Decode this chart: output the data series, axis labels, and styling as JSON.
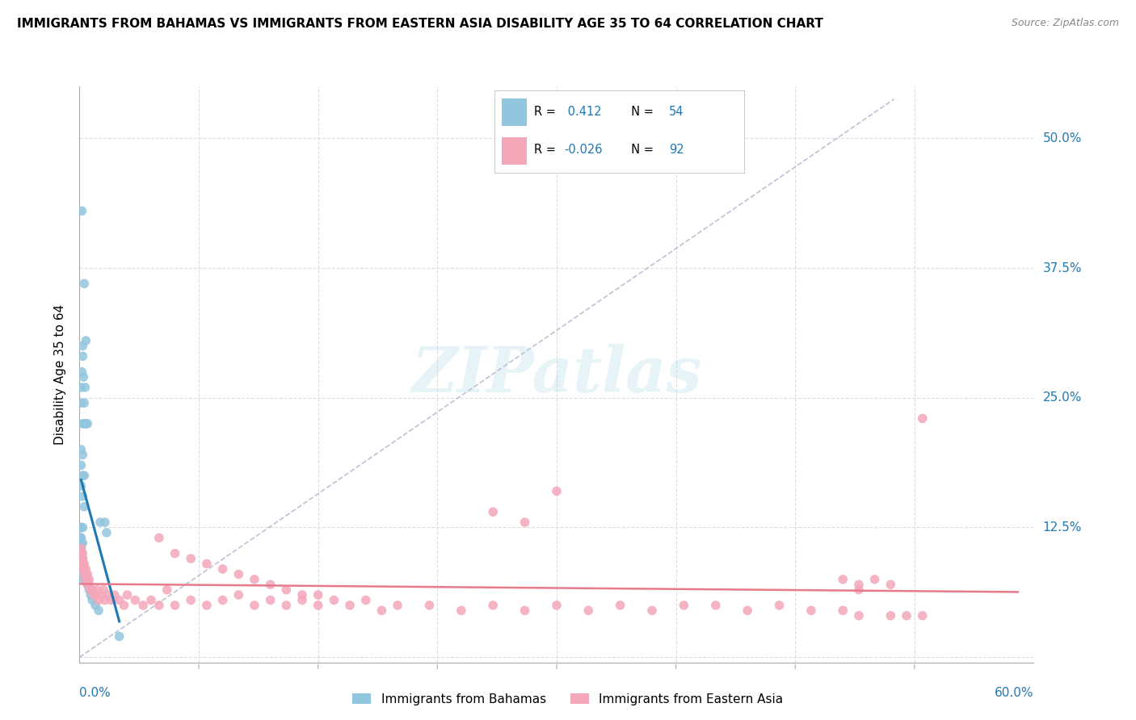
{
  "title": "IMMIGRANTS FROM BAHAMAS VS IMMIGRANTS FROM EASTERN ASIA DISABILITY AGE 35 TO 64 CORRELATION CHART",
  "source": "Source: ZipAtlas.com",
  "ylabel": "Disability Age 35 to 64",
  "xlim": [
    0.0,
    0.6
  ],
  "ylim": [
    -0.005,
    0.55
  ],
  "r_bahamas": 0.412,
  "n_bahamas": 54,
  "r_eastern_asia": -0.026,
  "n_eastern_asia": 92,
  "color_bahamas": "#92C5DE",
  "color_eastern_asia": "#F4A7B9",
  "trend_color_bahamas": "#1F78B4",
  "trend_color_eastern_asia": "#E87A8C",
  "dashed_line_color": "#B0B0CC",
  "watermark": "ZIPatlas",
  "background_color": "#FFFFFF",
  "grid_color": "#DDDDDD",
  "ytick_values": [
    0.0,
    0.125,
    0.25,
    0.375,
    0.5
  ],
  "ytick_labels_right": [
    "",
    "12.5%",
    "25.0%",
    "37.5%",
    "50.0%"
  ],
  "xtick_label_left": "0.0%",
  "xtick_label_right": "60.0%",
  "legend_label_bahamas": "Immigrants from Bahamas",
  "legend_label_eastern_asia": "Immigrants from Eastern Asia",
  "bah_x": [
    0.0015,
    0.003,
    0.002,
    0.004,
    0.0025,
    0.001,
    0.0035,
    0.003,
    0.002,
    0.0015,
    0.001,
    0.002,
    0.003,
    0.004,
    0.005,
    0.001,
    0.002,
    0.001,
    0.002,
    0.003,
    0.001,
    0.002,
    0.003,
    0.001,
    0.002,
    0.001,
    0.002,
    0.001,
    0.001,
    0.002,
    0.001,
    0.002,
    0.003,
    0.004,
    0.005,
    0.006,
    0.007,
    0.008,
    0.01,
    0.012,
    0.001,
    0.001,
    0.001,
    0.001,
    0.001,
    0.001,
    0.001,
    0.002,
    0.002,
    0.002,
    0.013,
    0.016,
    0.017,
    0.025
  ],
  "bah_y": [
    0.43,
    0.36,
    0.29,
    0.305,
    0.27,
    0.26,
    0.26,
    0.245,
    0.3,
    0.275,
    0.245,
    0.225,
    0.225,
    0.225,
    0.225,
    0.2,
    0.195,
    0.185,
    0.175,
    0.175,
    0.165,
    0.155,
    0.145,
    0.125,
    0.125,
    0.115,
    0.11,
    0.105,
    0.1,
    0.095,
    0.09,
    0.085,
    0.08,
    0.075,
    0.07,
    0.065,
    0.06,
    0.055,
    0.05,
    0.045,
    0.125,
    0.115,
    0.11,
    0.105,
    0.1,
    0.095,
    0.09,
    0.085,
    0.08,
    0.075,
    0.13,
    0.13,
    0.12,
    0.02
  ],
  "ea_x": [
    0.001,
    0.001,
    0.001,
    0.001,
    0.002,
    0.002,
    0.002,
    0.002,
    0.003,
    0.003,
    0.003,
    0.004,
    0.004,
    0.004,
    0.005,
    0.005,
    0.005,
    0.006,
    0.006,
    0.007,
    0.008,
    0.009,
    0.01,
    0.011,
    0.012,
    0.013,
    0.015,
    0.016,
    0.018,
    0.02,
    0.022,
    0.025,
    0.028,
    0.03,
    0.035,
    0.04,
    0.045,
    0.05,
    0.055,
    0.06,
    0.07,
    0.08,
    0.09,
    0.1,
    0.11,
    0.12,
    0.13,
    0.14,
    0.15,
    0.16,
    0.17,
    0.18,
    0.19,
    0.2,
    0.22,
    0.24,
    0.26,
    0.28,
    0.3,
    0.32,
    0.34,
    0.36,
    0.38,
    0.4,
    0.42,
    0.44,
    0.46,
    0.48,
    0.26,
    0.28,
    0.3,
    0.05,
    0.06,
    0.07,
    0.08,
    0.09,
    0.1,
    0.11,
    0.12,
    0.13,
    0.14,
    0.15,
    0.49,
    0.51,
    0.52,
    0.53,
    0.48,
    0.5,
    0.49,
    0.51,
    0.53,
    0.49
  ],
  "ea_y": [
    0.105,
    0.1,
    0.095,
    0.09,
    0.1,
    0.095,
    0.09,
    0.085,
    0.09,
    0.085,
    0.08,
    0.085,
    0.08,
    0.075,
    0.08,
    0.075,
    0.07,
    0.075,
    0.07,
    0.065,
    0.065,
    0.06,
    0.06,
    0.065,
    0.055,
    0.06,
    0.065,
    0.055,
    0.06,
    0.055,
    0.06,
    0.055,
    0.05,
    0.06,
    0.055,
    0.05,
    0.055,
    0.05,
    0.065,
    0.05,
    0.055,
    0.05,
    0.055,
    0.06,
    0.05,
    0.055,
    0.05,
    0.055,
    0.05,
    0.055,
    0.05,
    0.055,
    0.045,
    0.05,
    0.05,
    0.045,
    0.05,
    0.045,
    0.05,
    0.045,
    0.05,
    0.045,
    0.05,
    0.05,
    0.045,
    0.05,
    0.045,
    0.045,
    0.14,
    0.13,
    0.16,
    0.115,
    0.1,
    0.095,
    0.09,
    0.085,
    0.08,
    0.075,
    0.07,
    0.065,
    0.06,
    0.06,
    0.04,
    0.04,
    0.04,
    0.04,
    0.075,
    0.075,
    0.07,
    0.07,
    0.23,
    0.065
  ]
}
